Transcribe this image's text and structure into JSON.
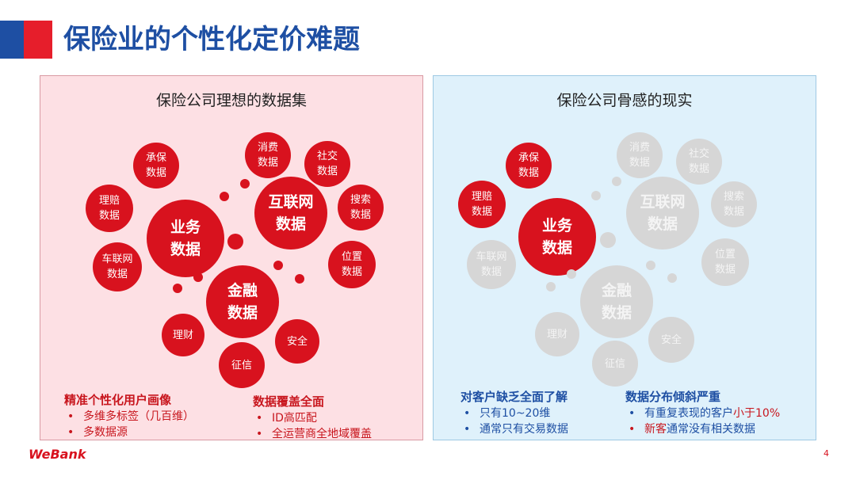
{
  "title": "保险业的个性化定价难题",
  "left_panel": {
    "heading": "保险公司理想的数据集",
    "bubbles": {
      "underwriting": "承保\n数据",
      "claims": "理赔\n数据",
      "business": "业务\n数据",
      "iov": "车联网\n数据",
      "consumption": "消费\n数据",
      "social": "社交\n数据",
      "internet": "互联网\n数据",
      "search": "搜索\n数据",
      "location": "位置\n数据",
      "finance": "金融\n数据",
      "wealth": "理财",
      "security": "安全",
      "credit": "征信"
    },
    "note1": {
      "head": "精准个性化用户画像",
      "items": [
        "多维多标签（几百维）",
        "多数据源"
      ]
    },
    "note2": {
      "head": "数据覆盖全面",
      "items": [
        "ID高匹配",
        "全运营商全地域覆盖"
      ]
    }
  },
  "right_panel": {
    "heading": "保险公司骨感的现实",
    "bubbles": {
      "underwriting": "承保\n数据",
      "claims": "理赔\n数据",
      "business": "业务\n数据",
      "iov": "车联网\n数据",
      "consumption": "消费\n数据",
      "social": "社交\n数据",
      "internet": "互联网\n数据",
      "search": "搜索\n数据",
      "location": "位置\n数据",
      "finance": "金融\n数据",
      "wealth": "理财",
      "security": "安全",
      "credit": "征信"
    },
    "note1": {
      "head": "对客户缺乏全面了解",
      "items": [
        "只有10~20维",
        "通常只有交易数据"
      ]
    },
    "note2": {
      "head": "数据分布倾斜严重",
      "item1_part1": "有重复表现的客户",
      "item1_part2": "小于10%",
      "item2_part1": "新客",
      "item2_part2": "通常没有相关数据"
    }
  },
  "bullet": "•",
  "logo": "WeBank",
  "page_number": "4",
  "colors": {
    "brand_red": "#d8121e",
    "brand_blue": "#1e4fa3",
    "inactive_gray": "#d6d6d6"
  }
}
